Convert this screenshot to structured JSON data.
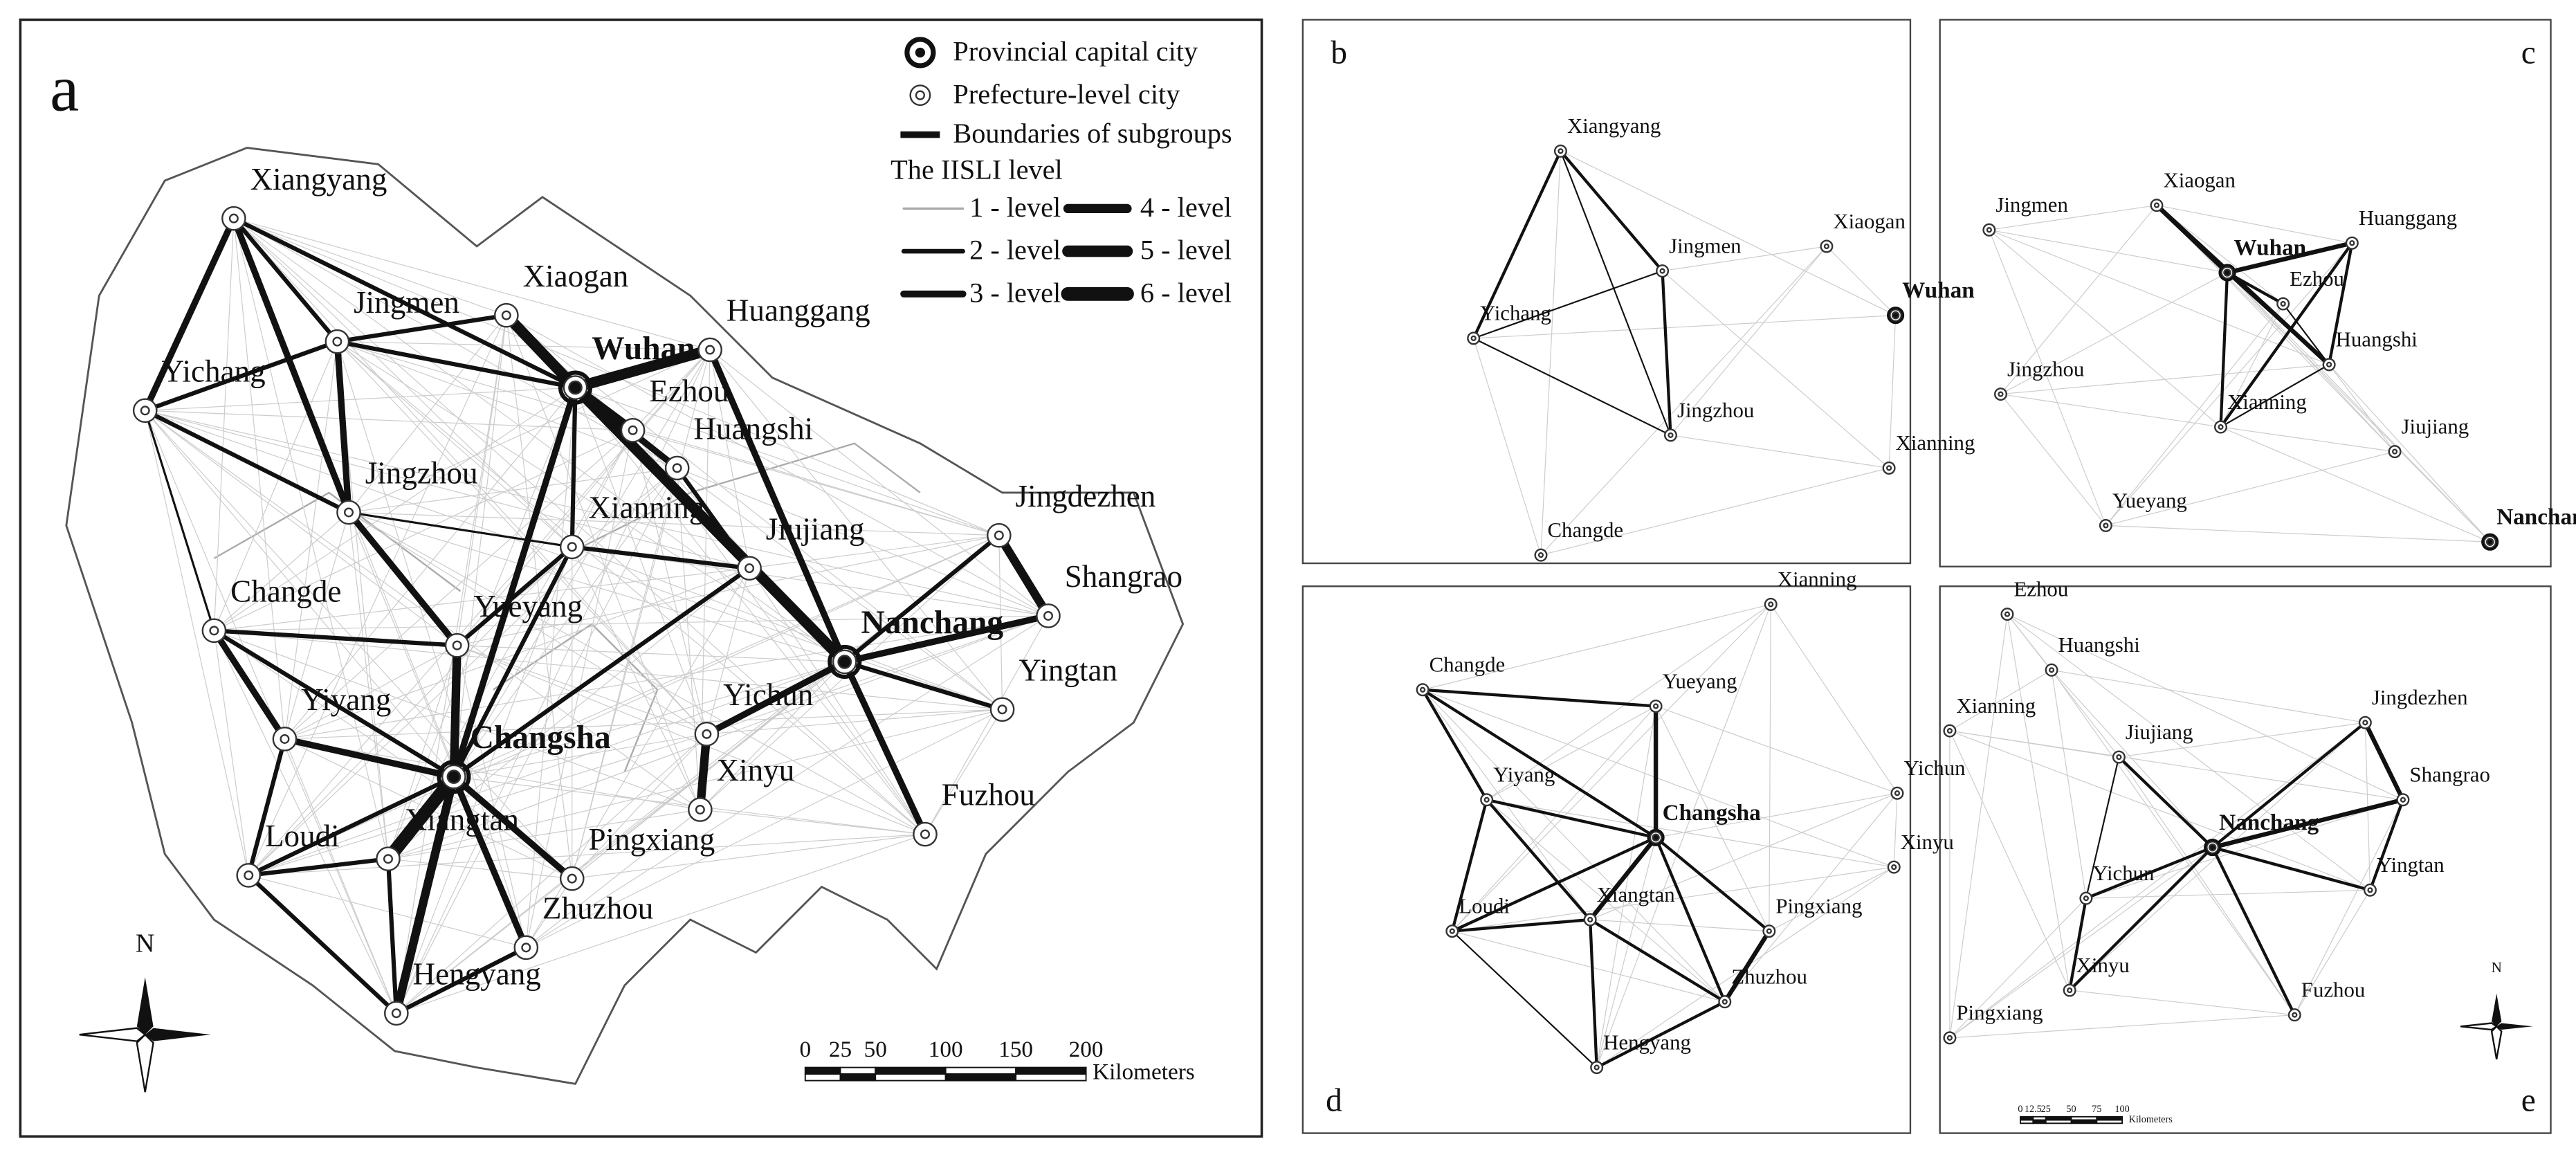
{
  "panels": [
    {
      "letter": "a",
      "cities": [
        "Xiangyang",
        "Yichang",
        "Jingmen",
        "Xiaogan",
        "Wuhan",
        "Huanggang",
        "Ezhou",
        "Huangshi",
        "Jingzhou",
        "Xianning",
        "Jiujiang",
        "Jingdezhen",
        "Shangrao",
        "Nanchang",
        "Yingtan",
        "Changde",
        "Yueyang",
        "Yiyang",
        "Changsha",
        "Yichun",
        "Xinyu",
        "Fuzhou",
        "Pingxiang",
        "Zhuzhou",
        "Hengyang",
        "Xiangtan",
        "Loudi"
      ]
    },
    {
      "letter": "b",
      "cities": [
        "Xiangyang",
        "Jingmen",
        "Yichang",
        "Jingzhou",
        "Xiaogan",
        "Wuhan",
        "Xianning",
        "Changde"
      ]
    },
    {
      "letter": "c",
      "cities": [
        "Jingmen",
        "Xiaogan",
        "Huanggang",
        "Wuhan",
        "Ezhou",
        "Huangshi",
        "Jingzhou",
        "Xianning",
        "Jiujiang",
        "Yueyang",
        "Nanchang"
      ]
    },
    {
      "letter": "d",
      "cities": [
        "Xianning",
        "Changde",
        "Yueyang",
        "Yiyang",
        "Changsha",
        "Yichun",
        "Xinyu",
        "Loudi",
        "Xiangtan",
        "Pingxiang",
        "Zhuzhou",
        "Hengyang"
      ]
    },
    {
      "letter": "e",
      "cities": [
        "Ezhou",
        "Huangshi",
        "Xianning",
        "Jiujiang",
        "Jingdezhen",
        "Shangrao",
        "Nanchang",
        "Yingtan",
        "Yichun",
        "Xinyu",
        "Fuzhou",
        "Pingxiang"
      ]
    }
  ],
  "legend": {
    "capital": "Provincial capital city",
    "prefecture": "Prefecture-level city",
    "boundaries": "Boundaries of subgroups",
    "level_title": "The IISLI level",
    "levels": [
      "1 - level",
      "2 - level",
      "3 - level",
      "4 - level",
      "5 - level",
      "6 - level"
    ]
  },
  "scale_a": {
    "ticks": [
      0,
      25,
      50,
      100,
      150,
      200
    ],
    "unit": "Kilometers"
  },
  "scale_e": {
    "ticks": [
      0,
      12.5,
      25,
      50,
      75,
      100
    ],
    "unit": "Kilometers"
  },
  "north": "N"
}
